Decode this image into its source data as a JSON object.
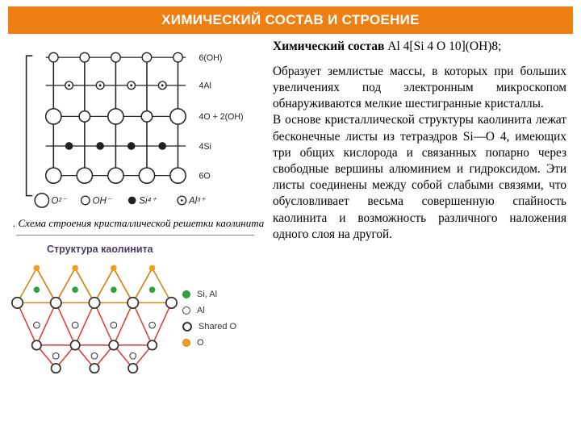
{
  "header": {
    "title": "ХИМИЧЕСКИЙ СОСТАВ И СТРОЕНИЕ",
    "bg": "#f07f13",
    "fg": "#ffffff"
  },
  "formula": {
    "label": "Химический состав ",
    "value": "Al 4[Si 4 O 10](OH)8;"
  },
  "body": "Образует землистые массы, в которых при больших увеличениях под электронным микроскопом обнаруживаются мелкие шестигранные кристаллы.\nВ основе кристаллической структуры каолинита лежат бесконечные листы из тетраэдров Si—O 4, имеющих три общих кислорода и связанных попарно через свободные вершины алюминием и гидроксидом. Эти листы соединены между собой слабыми связями, что обусловливает весьма совершенную спайность каолинита и возможность различного наложения одного слоя на другой.",
  "fig1": {
    "caption": ". Схема строения кристаллической решетки каолинита",
    "row_labels": [
      "6(OH)",
      "4Al",
      "4O + 2(OH)",
      "4Si",
      "6O"
    ],
    "legend": [
      {
        "label": "O²⁻",
        "kind": "open-lg"
      },
      {
        "label": "OH⁻",
        "kind": "open-sm"
      },
      {
        "label": "Si⁴⁺",
        "kind": "solid"
      },
      {
        "label": "Al³⁺",
        "kind": "open-dot"
      }
    ]
  },
  "fig2": {
    "title": "Структура каолинита",
    "legend": [
      {
        "label": "Si, Al",
        "swatch": "g"
      },
      {
        "label": "Al",
        "swatch": "w"
      },
      {
        "label": "Shared O",
        "swatch": "bw"
      },
      {
        "label": "O",
        "swatch": "o"
      }
    ],
    "colors": {
      "tetra": "#f39c1f",
      "octa": "#e23a2e",
      "si": "#2fa33a",
      "al_open": "#ffffff",
      "o_big": "#333333",
      "o_small": "#f39c1f"
    }
  }
}
